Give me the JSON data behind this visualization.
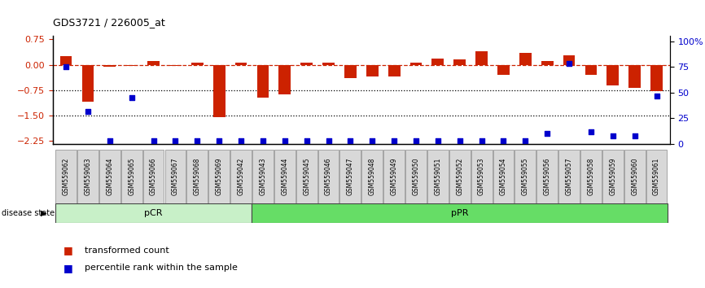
{
  "title": "GDS3721 / 226005_at",
  "samples": [
    "GSM559062",
    "GSM559063",
    "GSM559064",
    "GSM559065",
    "GSM559066",
    "GSM559067",
    "GSM559068",
    "GSM559069",
    "GSM559042",
    "GSM559043",
    "GSM559044",
    "GSM559045",
    "GSM559046",
    "GSM559047",
    "GSM559048",
    "GSM559049",
    "GSM559050",
    "GSM559051",
    "GSM559052",
    "GSM559053",
    "GSM559054",
    "GSM559055",
    "GSM559056",
    "GSM559057",
    "GSM559058",
    "GSM559059",
    "GSM559060",
    "GSM559061"
  ],
  "transformed_count": [
    0.25,
    -1.1,
    -0.07,
    -0.03,
    0.12,
    -0.03,
    0.05,
    -1.55,
    0.07,
    -0.97,
    -0.87,
    0.05,
    0.05,
    -0.4,
    -0.35,
    -0.35,
    0.05,
    0.18,
    0.15,
    0.4,
    -0.3,
    0.35,
    0.12,
    0.28,
    -0.3,
    -0.62,
    -0.68,
    -0.78
  ],
  "percentile_rank_pct": [
    75,
    32,
    3,
    45,
    3,
    3,
    3,
    3,
    3,
    3,
    3,
    3,
    3,
    3,
    3,
    3,
    3,
    3,
    3,
    3,
    3,
    3,
    10,
    78,
    12,
    8,
    8,
    47
  ],
  "pcr_count": 9,
  "group_colors": [
    "#c8f0c8",
    "#66dd66"
  ],
  "ylim_left": [
    -2.35,
    0.85
  ],
  "ylim_right": [
    0,
    105
  ],
  "yticks_left": [
    0.75,
    0.0,
    -0.75,
    -1.5,
    -2.25
  ],
  "yticks_right": [
    100,
    75,
    50,
    25,
    0
  ],
  "bar_color": "#cc2200",
  "dot_color": "#0000cc",
  "dotline_y": [
    -0.75,
    -1.5
  ],
  "bar_width": 0.55,
  "background_color": "#ffffff",
  "ticklabel_bg": "#d8d8d8"
}
